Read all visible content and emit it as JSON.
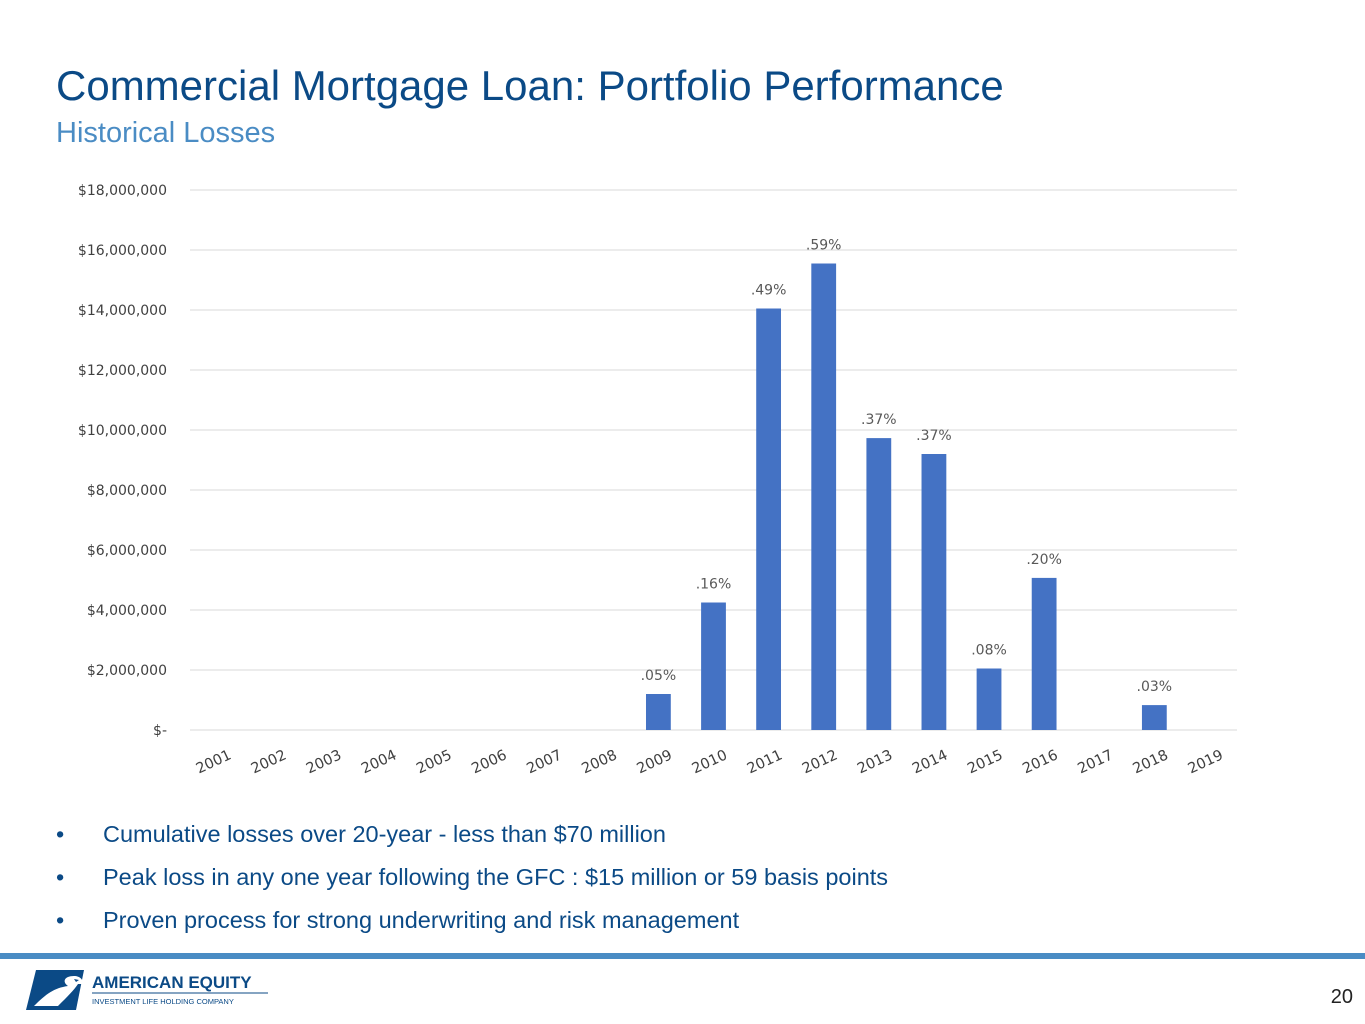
{
  "header": {
    "title": "Commercial Mortgage Loan: Portfolio Performance",
    "subtitle": "Historical Losses"
  },
  "chart_data": {
    "type": "bar",
    "categories": [
      "2001",
      "2002",
      "2003",
      "2004",
      "2005",
      "2006",
      "2007",
      "2008",
      "2009",
      "2010",
      "2011",
      "2012",
      "2013",
      "2014",
      "2015",
      "2016",
      "2017",
      "2018",
      "2019"
    ],
    "values": [
      0,
      0,
      0,
      0,
      0,
      0,
      0,
      0,
      1200000,
      4250000,
      14050000,
      15550000,
      9730000,
      9200000,
      2050000,
      5070000,
      0,
      830000,
      0
    ],
    "data_labels": [
      "",
      "",
      "",
      "",
      "",
      "",
      "",
      "",
      ".05%",
      ".16%",
      ".49%",
      ".59%",
      ".37%",
      ".37%",
      ".08%",
      ".20%",
      "",
      ".03%",
      ""
    ],
    "y_ticks": [
      0,
      2000000,
      4000000,
      6000000,
      8000000,
      10000000,
      12000000,
      14000000,
      16000000,
      18000000
    ],
    "y_tick_labels": [
      "$-",
      "$2,000,000",
      "$4,000,000",
      "$6,000,000",
      "$8,000,000",
      "$10,000,000",
      "$12,000,000",
      "$14,000,000",
      "$16,000,000",
      "$18,000,000"
    ],
    "ylim": [
      0,
      18000000
    ],
    "grid": true,
    "legend": "none",
    "bar_color": "#4472c4",
    "xlabel": "",
    "ylabel": ""
  },
  "bullets": [
    "Cumulative losses over 20-year - less than $70 million",
    "Peak loss in any one year following the GFC : $15 million or 59 basis points",
    "Proven process for strong underwriting and risk management"
  ],
  "bullet_marker": "•",
  "footer": {
    "company_name": "AMERICAN EQUITY",
    "company_tagline": "INVESTMENT LIFE HOLDING COMPANY",
    "page_number": "20",
    "logo_icon": "eagle-icon"
  },
  "colors": {
    "title": "#0b4a86",
    "subtitle": "#4a8cc4",
    "accent_rule": "#4a8cc4"
  }
}
